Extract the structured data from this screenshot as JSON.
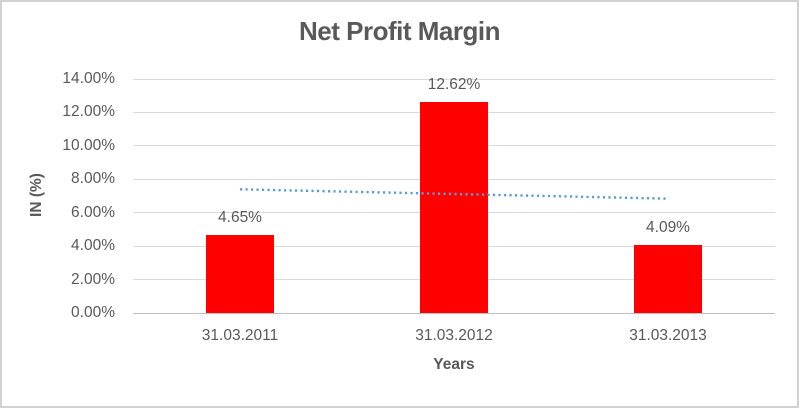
{
  "chart_data": {
    "type": "bar",
    "title": "Net Profit Margin",
    "xlabel": "Years",
    "ylabel": "IN (%)",
    "categories": [
      "31.03.2011",
      "31.03.2012",
      "31.03.2013"
    ],
    "values": [
      4.65,
      12.62,
      4.09
    ],
    "value_labels": [
      "4.65%",
      "12.62%",
      "4.09%"
    ],
    "ylim": [
      0,
      14
    ],
    "ytick_step": 2,
    "ytick_labels": [
      "0.00%",
      "2.00%",
      "4.00%",
      "6.00%",
      "8.00%",
      "10.00%",
      "12.00%",
      "14.00%"
    ],
    "grid": true,
    "legend": "none",
    "trendline": {
      "type": "linear",
      "style": "dotted",
      "start_value": 7.4,
      "end_value": 6.84
    }
  },
  "colors": {
    "bar": "#FF0000",
    "trendline": "#5B9BD5",
    "text": "#595959",
    "grid": "#D9D9D9",
    "axis": "#BFBFBF",
    "frame": "#D2D2D2",
    "background": "#FFFFFF"
  }
}
